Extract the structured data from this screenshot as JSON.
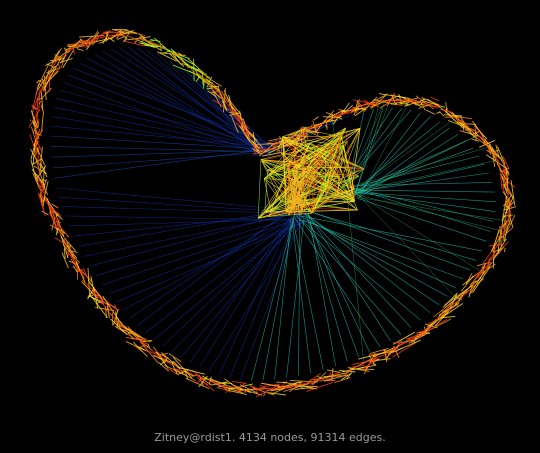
{
  "caption": "Zitney@rdist1. 4134 nodes, 91314 edges.",
  "colors": {
    "background": "#000000",
    "caption": "#9a9a9a",
    "edge_hot": "#ff3a10",
    "edge_warm": "#ffb020",
    "edge_yellow": "#ffe020",
    "edge_lime": "#a0ff20",
    "edge_teal": "#20c0b0",
    "edge_blue": "#1030a0"
  }
}
